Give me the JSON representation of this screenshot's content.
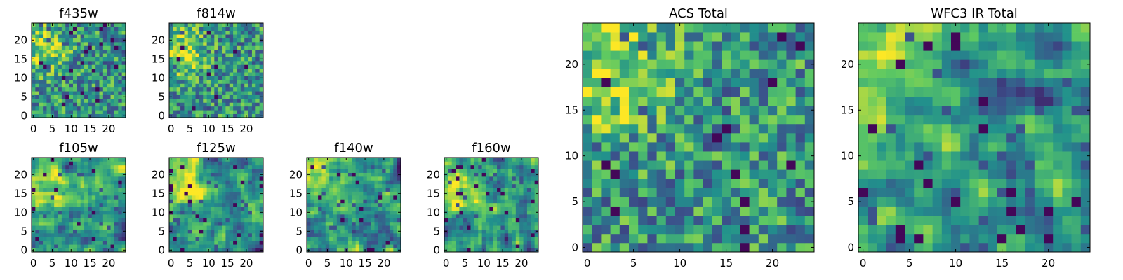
{
  "figure": {
    "background": "#ffffff"
  },
  "colormap": {
    "name": "viridis",
    "stops": [
      "#440154",
      "#3b528b",
      "#21918c",
      "#5ec962",
      "#fde725"
    ]
  },
  "chart_data": [
    {
      "id": "f435w",
      "type": "heatmap",
      "title": "f435w",
      "grid_size": 25,
      "x_ticks": [
        0,
        5,
        10,
        15,
        20
      ],
      "y_ticks": [
        0,
        5,
        10,
        15,
        20
      ],
      "xlim": [
        -0.5,
        24.5
      ],
      "ylim": [
        -0.5,
        24.5
      ],
      "pattern": "speckled",
      "seed": 11,
      "bright_corner": [
        3,
        18
      ],
      "grid": false
    },
    {
      "id": "f814w",
      "type": "heatmap",
      "title": "f814w",
      "grid_size": 25,
      "x_ticks": [
        0,
        5,
        10,
        15,
        20
      ],
      "y_ticks": [
        0,
        5,
        10,
        15,
        20
      ],
      "xlim": [
        -0.5,
        24.5
      ],
      "ylim": [
        -0.5,
        24.5
      ],
      "pattern": "speckled",
      "seed": 23,
      "bright_corner": [
        3,
        17
      ],
      "grid": false
    },
    {
      "id": "f105w",
      "type": "heatmap",
      "title": "f105w",
      "grid_size": 25,
      "x_ticks": [
        0,
        5,
        10,
        15,
        20
      ],
      "y_ticks": [
        0,
        5,
        10,
        15,
        20
      ],
      "xlim": [
        -0.5,
        24.5
      ],
      "ylim": [
        -0.5,
        24.5
      ],
      "pattern": "smooth",
      "seed": 37,
      "bright_corner": [
        3,
        17
      ],
      "grid": false
    },
    {
      "id": "f125w",
      "type": "heatmap",
      "title": "f125w",
      "grid_size": 25,
      "x_ticks": [
        0,
        5,
        10,
        15,
        20
      ],
      "y_ticks": [
        0,
        5,
        10,
        15,
        20
      ],
      "xlim": [
        -0.5,
        24.5
      ],
      "ylim": [
        -0.5,
        24.5
      ],
      "pattern": "smooth",
      "seed": 41,
      "bright_corner": [
        3,
        17
      ],
      "grid": false
    },
    {
      "id": "f140w",
      "type": "heatmap",
      "title": "f140w",
      "grid_size": 25,
      "x_ticks": [
        0,
        5,
        10,
        15,
        20
      ],
      "y_ticks": [
        0,
        5,
        10,
        15,
        20
      ],
      "xlim": [
        -0.5,
        24.5
      ],
      "ylim": [
        -0.5,
        24.5
      ],
      "pattern": "smooth",
      "seed": 53,
      "bright_corner": [
        3,
        18
      ],
      "grid": false
    },
    {
      "id": "f160w",
      "type": "heatmap",
      "title": "f160w",
      "grid_size": 25,
      "x_ticks": [
        0,
        5,
        10,
        15,
        20
      ],
      "y_ticks": [
        0,
        5,
        10,
        15,
        20
      ],
      "xlim": [
        -0.5,
        24.5
      ],
      "ylim": [
        -0.5,
        24.5
      ],
      "pattern": "smooth",
      "seed": 67,
      "bright_corner": [
        3,
        17
      ],
      "grid": false
    },
    {
      "id": "acs_total",
      "type": "heatmap",
      "title": "ACS Total",
      "grid_size": 25,
      "x_ticks": [
        0,
        5,
        10,
        15,
        20
      ],
      "y_ticks": [
        0,
        5,
        10,
        15,
        20
      ],
      "xlim": [
        -0.5,
        24.5
      ],
      "ylim": [
        -0.5,
        24.5
      ],
      "pattern": "speckled",
      "seed": 79,
      "bright_corner": [
        2,
        19
      ],
      "grid": false
    },
    {
      "id": "wfc3_ir_total",
      "type": "heatmap",
      "title": "WFC3 IR Total",
      "grid_size": 25,
      "x_ticks": [
        0,
        5,
        10,
        15,
        20
      ],
      "y_ticks": [
        0,
        5,
        10,
        15,
        20
      ],
      "xlim": [
        -0.5,
        24.5
      ],
      "ylim": [
        -0.5,
        24.5
      ],
      "pattern": "smooth",
      "seed": 97,
      "bright_corner": [
        2,
        20
      ],
      "grid": false
    }
  ]
}
